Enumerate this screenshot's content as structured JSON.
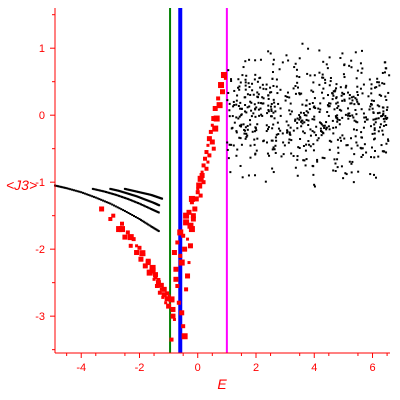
{
  "chart_data": {
    "type": "scatter",
    "title": "",
    "xlabel": "E",
    "ylabel": "<J3>",
    "xlim": [
      -4.9,
      6.6
    ],
    "ylim": [
      -3.55,
      1.6
    ],
    "x_ticks": [
      -4,
      -2,
      0,
      2,
      4,
      6
    ],
    "x_tick_labels": [
      "-4",
      "-2",
      "0",
      "2",
      "4",
      "6"
    ],
    "y_ticks": [
      -3,
      -2,
      -1,
      0,
      1
    ],
    "y_tick_labels": [
      "-3",
      "-2",
      "-1",
      "0",
      "1"
    ],
    "grid": false,
    "colors": {
      "axis": "#ff0000",
      "tick_labels": "#ff0000",
      "axis_labels": "#ff0000",
      "series_black": "#000000",
      "series_red": "#ff0000",
      "line_green": "#008000",
      "line_blue": "#0000ff",
      "line_magenta": "#ff00ff"
    },
    "vertical_lines": [
      {
        "x": -0.95,
        "color": "#008000",
        "width": "thin"
      },
      {
        "x": -0.6,
        "color": "#0000ff",
        "width": "thick"
      },
      {
        "x": 1.0,
        "color": "#ff00ff",
        "width": "thin"
      }
    ],
    "series": [
      {
        "color": "#000000",
        "marker": "small-dot",
        "curves": [
          {
            "x": [
              -4.9,
              -4.5,
              -4.0,
              -3.5,
              -3.0,
              -2.5,
              -2.0,
              -1.6,
              -1.3
            ],
            "y": [
              -1.05,
              -1.09,
              -1.15,
              -1.23,
              -1.32,
              -1.43,
              -1.55,
              -1.66,
              -1.74
            ]
          },
          {
            "x": [
              -3.6,
              -3.2,
              -2.8,
              -2.4,
              -2.0,
              -1.6,
              -1.3
            ],
            "y": [
              -1.1,
              -1.14,
              -1.19,
              -1.25,
              -1.32,
              -1.4,
              -1.46
            ]
          },
          {
            "x": [
              -3.0,
              -2.7,
              -2.4,
              -2.1,
              -1.8,
              -1.5,
              -1.3
            ],
            "y": [
              -1.1,
              -1.13,
              -1.17,
              -1.21,
              -1.26,
              -1.31,
              -1.35
            ]
          },
          {
            "x": [
              -2.5,
              -2.2,
              -1.9,
              -1.6,
              -1.4,
              -1.2
            ],
            "y": [
              -1.1,
              -1.13,
              -1.16,
              -1.19,
              -1.22,
              -1.25
            ]
          }
        ],
        "cloud": {
          "x_range": [
            1.0,
            6.6
          ],
          "y_center": 0.0,
          "y_spread": 0.75,
          "count": 620,
          "max_y": 1.35,
          "min_y": -1.6
        }
      },
      {
        "color": "#ff0000",
        "marker": "square",
        "x": [
          -3.3,
          -3.0,
          -2.7,
          -2.5,
          -2.3,
          -2.1,
          -1.95,
          -1.8,
          -1.65,
          -1.5,
          -1.4,
          -1.3,
          -1.2,
          -1.1,
          -1.0,
          -2.9,
          -2.6,
          -2.4,
          -2.2,
          -2.0,
          -1.85,
          -1.7,
          -1.55,
          -1.45,
          -1.35,
          -1.25,
          -1.15,
          -1.05,
          -2.6,
          -2.3,
          -2.1,
          -1.9,
          -1.7,
          -1.55,
          -1.45,
          -1.35,
          -1.25,
          -1.15,
          -1.05,
          -0.98,
          -0.9,
          -0.85,
          -0.8,
          -0.75,
          -0.7,
          -0.65,
          -0.55,
          -0.5,
          -0.45,
          -0.4,
          -0.35,
          -0.3,
          -0.25,
          -0.2,
          -0.15,
          -0.1,
          -0.05,
          0.0,
          0.05,
          0.1,
          0.15,
          0.2,
          0.25,
          0.3,
          0.35,
          0.4,
          0.45,
          0.5,
          0.55,
          0.6,
          0.7,
          0.8,
          0.9,
          -0.7,
          -0.6,
          -0.5,
          -0.4,
          -0.3,
          -0.2,
          -0.9,
          -0.85,
          -0.75,
          -0.55,
          -0.45,
          -0.35,
          -0.25,
          -0.15,
          0.1,
          0.2,
          0.3,
          0.4,
          0.5,
          0.6,
          0.65,
          0.75,
          0.85,
          0.95,
          -0.8,
          -0.6,
          -0.4,
          -0.2,
          0.0,
          0.15,
          0.35,
          0.55
        ],
        "y": [
          -1.4,
          -1.55,
          -1.7,
          -1.82,
          -1.95,
          -2.05,
          -2.15,
          -2.25,
          -2.35,
          -2.45,
          -2.55,
          -2.65,
          -2.72,
          -2.8,
          -2.85,
          -1.5,
          -1.62,
          -1.75,
          -1.85,
          -1.98,
          -2.08,
          -2.2,
          -2.32,
          -2.42,
          -2.5,
          -2.6,
          -2.68,
          -2.74,
          -1.7,
          -1.82,
          -1.95,
          -2.06,
          -2.18,
          -2.28,
          -2.38,
          -2.46,
          -2.54,
          -2.6,
          -2.66,
          -2.7,
          -2.75,
          -2.9,
          -3.05,
          -2.3,
          -2.55,
          -2.8,
          -2.95,
          -3.15,
          -3.3,
          -2.6,
          -2.4,
          -2.2,
          -1.95,
          -1.7,
          -1.55,
          -1.4,
          -1.25,
          -1.15,
          -1.05,
          -0.95,
          -0.85,
          -0.75,
          -0.65,
          -0.55,
          -0.45,
          -0.35,
          -0.25,
          -0.15,
          -0.05,
          0.1,
          0.25,
          0.45,
          0.6,
          -1.9,
          -2.1,
          -1.8,
          -1.6,
          -1.45,
          -1.3,
          -3.35,
          -3.0,
          -2.45,
          -2.2,
          -2.0,
          -1.85,
          -1.65,
          -1.5,
          -1.2,
          -1.0,
          -0.8,
          -0.6,
          -0.4,
          -0.2,
          -0.05,
          0.15,
          0.35,
          0.55,
          -2.05,
          -1.75,
          -1.5,
          -1.25,
          -1.1,
          -0.9,
          -0.7,
          -0.5
        ]
      }
    ]
  }
}
